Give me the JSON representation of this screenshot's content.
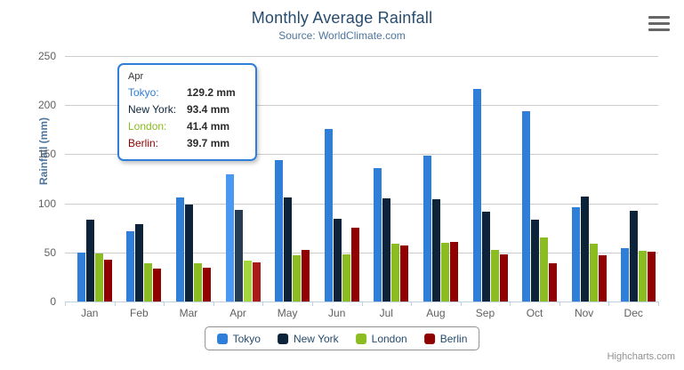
{
  "title": "Monthly Average Rainfall",
  "subtitle": "Source: WorldClimate.com",
  "credits": "Highcharts.com",
  "colors": {
    "title_text": "#274b6d",
    "subtitle_text": "#4d759e",
    "axis_title_text": "#4d759e",
    "axis_label_text": "#606060",
    "gridline": "#cccccc",
    "axis_line": "#c0d0e0",
    "legend_border": "#909090",
    "legend_text": "#274b6d",
    "credits_text": "#909090",
    "tooltip_border": "#2f7ed8"
  },
  "chart_data": {
    "type": "bar",
    "orientation": "vertical-columns",
    "title": "Monthly Average Rainfall",
    "subtitle": "Source: WorldClimate.com",
    "xlabel": "",
    "ylabel": "Rainfall (mm)",
    "ylim": [
      0,
      250
    ],
    "yticks": [
      0,
      50,
      100,
      150,
      200,
      250
    ],
    "grid": true,
    "legend_position": "bottom",
    "categories": [
      "Jan",
      "Feb",
      "Mar",
      "Apr",
      "May",
      "Jun",
      "Jul",
      "Aug",
      "Sep",
      "Oct",
      "Nov",
      "Dec"
    ],
    "hovered_category": "Apr",
    "hovered_index": 3,
    "series": [
      {
        "name": "Tokyo",
        "color": "#2f7ed8",
        "hover_color": "#4998f2",
        "values": [
          49.9,
          71.5,
          106.4,
          129.2,
          144.0,
          176.0,
          135.6,
          148.5,
          216.4,
          194.1,
          95.6,
          54.4
        ]
      },
      {
        "name": "New York",
        "color": "#0d233a",
        "hover_color": "#273d54",
        "values": [
          83.6,
          78.8,
          98.5,
          93.4,
          106.0,
          84.5,
          105.0,
          104.3,
          91.2,
          83.5,
          106.6,
          92.3
        ]
      },
      {
        "name": "London",
        "color": "#8bbc21",
        "hover_color": "#a5d63b",
        "values": [
          48.9,
          38.8,
          39.3,
          41.4,
          47.0,
          48.3,
          59.0,
          59.6,
          52.4,
          65.2,
          59.3,
          51.2
        ]
      },
      {
        "name": "Berlin",
        "color": "#910000",
        "hover_color": "#ab1a1a",
        "values": [
          42.4,
          33.2,
          34.5,
          39.7,
          52.6,
          75.5,
          57.4,
          60.4,
          47.6,
          39.1,
          46.8,
          51.1
        ]
      }
    ]
  },
  "tooltip": {
    "header": "Apr",
    "rows": [
      {
        "label": "Tokyo:",
        "value": "129.2 mm",
        "color": "#2f7ed8"
      },
      {
        "label": "New York:",
        "value": "93.4 mm",
        "color": "#0d233a"
      },
      {
        "label": "London:",
        "value": "41.4 mm",
        "color": "#8bbc21"
      },
      {
        "label": "Berlin:",
        "value": "39.7 mm",
        "color": "#910000"
      }
    ]
  },
  "legend": {
    "items": [
      {
        "label": "Tokyo",
        "color": "#2f7ed8"
      },
      {
        "label": "New York",
        "color": "#0d233a"
      },
      {
        "label": "London",
        "color": "#8bbc21"
      },
      {
        "label": "Berlin",
        "color": "#910000"
      }
    ]
  },
  "export_menu": {
    "icon": "hamburger-menu-icon"
  }
}
